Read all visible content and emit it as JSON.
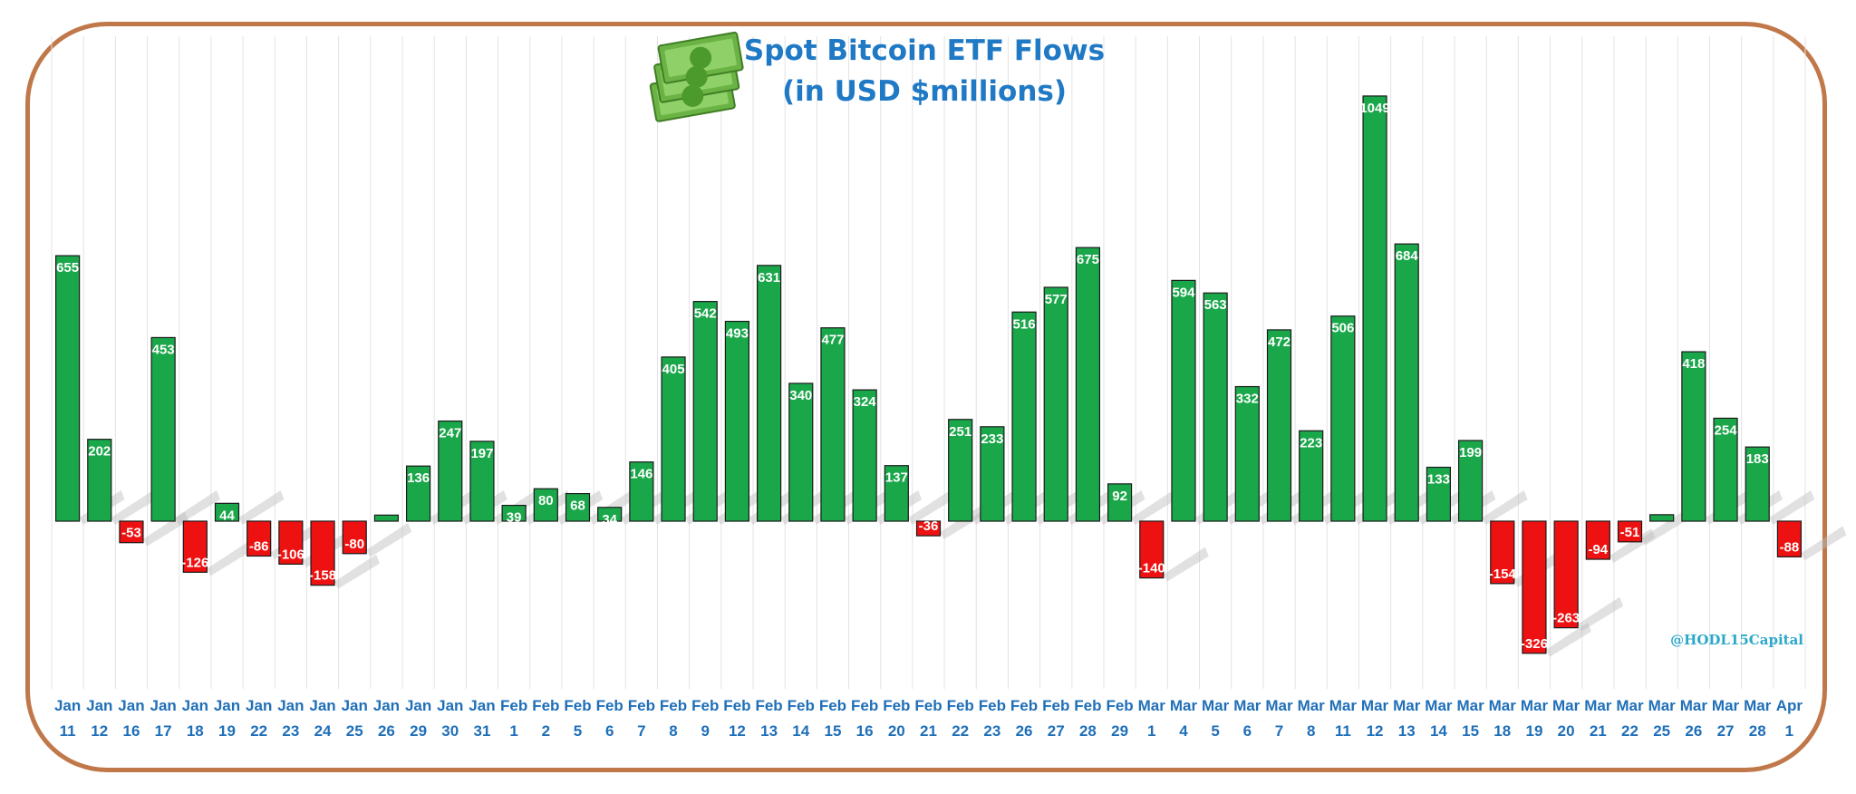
{
  "chart_data": {
    "type": "bar",
    "title": "Spot Bitcoin ETF Flows",
    "subtitle": "(in USD $millions)",
    "credit": "@HODL15Capital",
    "icon": "money-icon",
    "colors": {
      "positive": "#1aa74a",
      "negative": "#ee1111",
      "title": "#1f79c5",
      "tick": "#1f6fb8",
      "frame": "#c0784a"
    },
    "ylim": [
      -330,
      1060
    ],
    "grid": true,
    "categories": [
      {
        "month": "Jan",
        "day": "11"
      },
      {
        "month": "Jan",
        "day": "12"
      },
      {
        "month": "Jan",
        "day": "16"
      },
      {
        "month": "Jan",
        "day": "17"
      },
      {
        "month": "Jan",
        "day": "18"
      },
      {
        "month": "Jan",
        "day": "19"
      },
      {
        "month": "Jan",
        "day": "22"
      },
      {
        "month": "Jan",
        "day": "23"
      },
      {
        "month": "Jan",
        "day": "24"
      },
      {
        "month": "Jan",
        "day": "25"
      },
      {
        "month": "Jan",
        "day": "26"
      },
      {
        "month": "Jan",
        "day": "29"
      },
      {
        "month": "Jan",
        "day": "30"
      },
      {
        "month": "Jan",
        "day": "31"
      },
      {
        "month": "Feb",
        "day": "1"
      },
      {
        "month": "Feb",
        "day": "2"
      },
      {
        "month": "Feb",
        "day": "5"
      },
      {
        "month": "Feb",
        "day": "6"
      },
      {
        "month": "Feb",
        "day": "7"
      },
      {
        "month": "Feb",
        "day": "8"
      },
      {
        "month": "Feb",
        "day": "9"
      },
      {
        "month": "Feb",
        "day": "12"
      },
      {
        "month": "Feb",
        "day": "13"
      },
      {
        "month": "Feb",
        "day": "14"
      },
      {
        "month": "Feb",
        "day": "15"
      },
      {
        "month": "Feb",
        "day": "16"
      },
      {
        "month": "Feb",
        "day": "20"
      },
      {
        "month": "Feb",
        "day": "21"
      },
      {
        "month": "Feb",
        "day": "22"
      },
      {
        "month": "Feb",
        "day": "23"
      },
      {
        "month": "Feb",
        "day": "26"
      },
      {
        "month": "Feb",
        "day": "27"
      },
      {
        "month": "Feb",
        "day": "28"
      },
      {
        "month": "Feb",
        "day": "29"
      },
      {
        "month": "Mar",
        "day": "1"
      },
      {
        "month": "Mar",
        "day": "4"
      },
      {
        "month": "Mar",
        "day": "5"
      },
      {
        "month": "Mar",
        "day": "6"
      },
      {
        "month": "Mar",
        "day": "7"
      },
      {
        "month": "Mar",
        "day": "8"
      },
      {
        "month": "Mar",
        "day": "11"
      },
      {
        "month": "Mar",
        "day": "12"
      },
      {
        "month": "Mar",
        "day": "13"
      },
      {
        "month": "Mar",
        "day": "14"
      },
      {
        "month": "Mar",
        "day": "15"
      },
      {
        "month": "Mar",
        "day": "18"
      },
      {
        "month": "Mar",
        "day": "19"
      },
      {
        "month": "Mar",
        "day": "20"
      },
      {
        "month": "Mar",
        "day": "21"
      },
      {
        "month": "Mar",
        "day": "22"
      },
      {
        "month": "Mar",
        "day": "25"
      },
      {
        "month": "Mar",
        "day": "26"
      },
      {
        "month": "Mar",
        "day": "27"
      },
      {
        "month": "Mar",
        "day": "28"
      },
      {
        "month": "Apr",
        "day": "1"
      }
    ],
    "values": [
      655,
      202,
      -53,
      453,
      -126,
      44,
      -86,
      -106,
      -158,
      -80,
      15,
      136,
      247,
      197,
      39,
      80,
      68,
      34,
      146,
      405,
      542,
      493,
      631,
      340,
      477,
      324,
      137,
      -36,
      251,
      233,
      516,
      577,
      675,
      92,
      -140,
      594,
      563,
      332,
      472,
      223,
      506,
      1049,
      684,
      133,
      199,
      -154,
      -326,
      -263,
      -94,
      -51,
      16,
      418,
      254,
      183,
      -88
    ],
    "data_labels": [
      "655",
      "202",
      "-53",
      "453",
      "-126",
      "44",
      "-86",
      "-106",
      "-158",
      "-80",
      "",
      "136",
      "247",
      "197",
      "39",
      "80",
      "68",
      "34",
      "146",
      "405",
      "542",
      "493",
      "631",
      "340",
      "477",
      "324",
      "137",
      "-36",
      "251",
      "233",
      "516",
      "577",
      "675",
      "92",
      "-140",
      "594",
      "563",
      "332",
      "472",
      "223",
      "506",
      "1049",
      "684",
      "133",
      "199",
      "-154",
      "-326",
      "-263",
      "-94",
      "-51",
      "",
      "418",
      "254",
      "183",
      "-88"
    ]
  }
}
